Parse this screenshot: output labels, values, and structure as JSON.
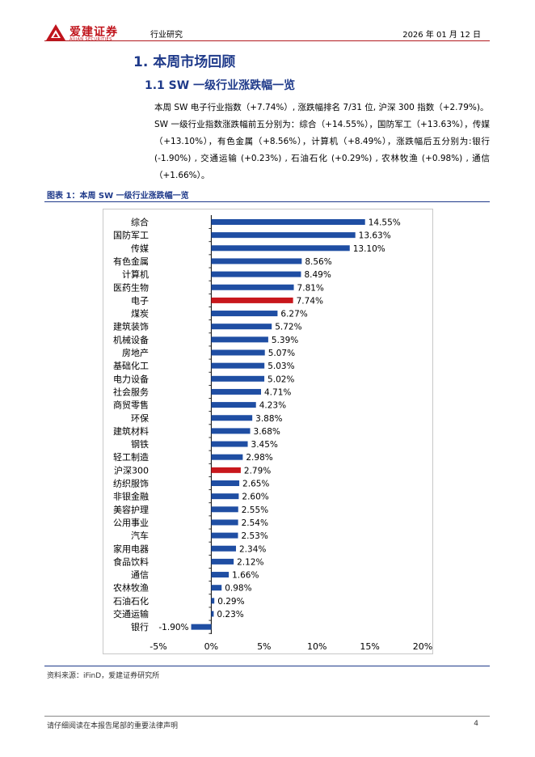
{
  "header": {
    "brand_cn": "爱建证券",
    "brand_en": "AIJIAN SECURITIES",
    "section": "行业研究",
    "date": "2026 年 01 月 12 日",
    "accent_color": "#c0141c",
    "logo_icon": "aijian-logo-icon"
  },
  "headings": {
    "h1": "1.  本周市场回顾",
    "h2": "1.1 SW 一级行业涨跌幅一览"
  },
  "body": {
    "p1": "本周 SW 电子行业指数（+7.74%）, 涨跌幅排名 7/31 位, 沪深 300 指数（+2.79%)。",
    "p2": "SW 一级行业指数涨跌幅前五分别为：综合（+14.55%），国防军工（+13.63%），传媒（+13.10%），有色金属（+8.56%），计算机（+8.49%），涨跌幅后五分别为:银行 (-1.90%) , 交通运输 (+0.23%) , 石油石化 (+0.29%) , 农林牧渔 (+0.98%) , 通信（+1.66%）。"
  },
  "figure": {
    "caption": "图表 1：本周 SW 一级行业涨跌幅一览",
    "source": "资料来源：iFinD，爱建证券研究所"
  },
  "chart_data": {
    "type": "bar",
    "orientation": "horizontal",
    "categories": [
      "综合",
      "国防军工",
      "传媒",
      "有色金属",
      "计算机",
      "医药生物",
      "电子",
      "煤炭",
      "建筑装饰",
      "机械设备",
      "房地产",
      "基础化工",
      "电力设备",
      "社会服务",
      "商贸零售",
      "环保",
      "建筑材料",
      "钢铁",
      "轻工制造",
      "沪深300",
      "纺织服饰",
      "非银金融",
      "美容护理",
      "公用事业",
      "汽车",
      "家用电器",
      "食品饮料",
      "通信",
      "农林牧渔",
      "石油石化",
      "交通运输",
      "银行"
    ],
    "values": [
      14.55,
      13.63,
      13.1,
      8.56,
      8.49,
      7.81,
      7.74,
      6.27,
      5.72,
      5.39,
      5.07,
      5.03,
      5.02,
      4.71,
      4.23,
      3.88,
      3.68,
      3.45,
      2.98,
      2.79,
      2.65,
      2.6,
      2.55,
      2.54,
      2.53,
      2.34,
      2.12,
      1.66,
      0.98,
      0.29,
      0.23,
      -1.9
    ],
    "value_labels": [
      "14.55%",
      "13.63%",
      "13.10%",
      "8.56%",
      "8.49%",
      "7.81%",
      "7.74%",
      "6.27%",
      "5.72%",
      "5.39%",
      "5.07%",
      "5.03%",
      "5.02%",
      "4.71%",
      "4.23%",
      "3.88%",
      "3.68%",
      "3.45%",
      "2.98%",
      "2.79%",
      "2.65%",
      "2.60%",
      "2.55%",
      "2.54%",
      "2.53%",
      "2.34%",
      "2.12%",
      "1.66%",
      "0.98%",
      "0.29%",
      "0.23%",
      "-1.90%"
    ],
    "highlight": [
      "电子",
      "沪深300"
    ],
    "xlim": [
      -5,
      20
    ],
    "xticks": [
      -5,
      0,
      5,
      10,
      15,
      20
    ],
    "xtick_labels": [
      "-5%",
      "0%",
      "5%",
      "10%",
      "15%",
      "20%"
    ],
    "grid": false,
    "bar_color": "#1f4ea3",
    "highlight_color": "#c8171c"
  },
  "footer": {
    "disclaimer": "请仔细阅读在本报告尾部的重要法律声明",
    "page": "4"
  }
}
